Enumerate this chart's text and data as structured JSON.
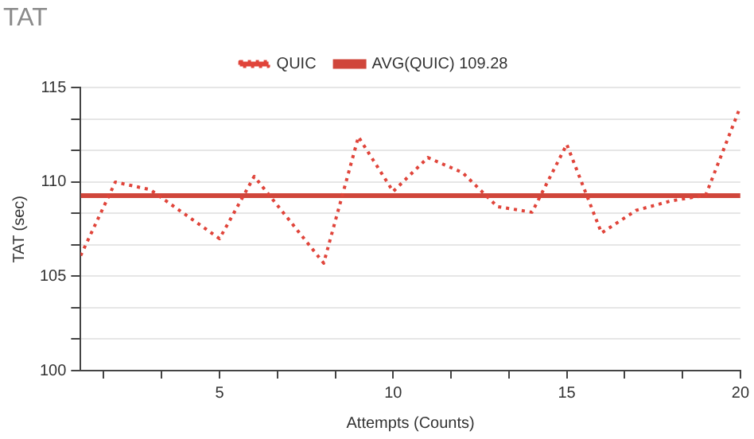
{
  "chart_data": {
    "type": "line",
    "title": "TAT",
    "xlabel": "Attempts (Counts)",
    "ylabel": "TAT (sec)",
    "x": [
      1,
      2,
      3,
      4,
      5,
      6,
      7,
      8,
      9,
      10,
      11,
      12,
      13,
      14,
      15,
      16,
      17,
      18,
      19,
      20
    ],
    "series": [
      {
        "name": "QUIC",
        "color": "#e0443a",
        "line_style": "dotted",
        "values": [
          106.1,
          110.0,
          109.6,
          108.3,
          107.0,
          110.3,
          108.0,
          105.7,
          112.4,
          109.5,
          111.3,
          110.5,
          108.7,
          108.4,
          112.0,
          107.3,
          108.5,
          109.0,
          109.3,
          114.0
        ]
      }
    ],
    "ref_lines": [
      {
        "axis": "y",
        "value": 109.28,
        "label": "AVG(QUIC) 109.28",
        "color": "#d0463b",
        "line_style": "solid"
      }
    ],
    "xlim": [
      1,
      20
    ],
    "xticks": [
      {
        "value": 1.667,
        "label": null
      },
      {
        "value": 3.333,
        "label": null
      },
      5,
      {
        "value": 6.667,
        "label": null
      },
      {
        "value": 8.333,
        "label": null
      },
      10,
      {
        "value": 11.667,
        "label": null
      },
      {
        "value": 13.333,
        "label": null
      },
      15,
      {
        "value": 16.667,
        "label": null
      },
      {
        "value": 18.333,
        "label": null
      },
      20
    ],
    "ylim": [
      100,
      115
    ],
    "yticks": [
      100,
      {
        "value": 101.667,
        "label": null
      },
      {
        "value": 103.333,
        "label": null
      },
      105,
      {
        "value": 106.667,
        "label": null
      },
      {
        "value": 108.333,
        "label": null
      },
      110,
      {
        "value": 111.667,
        "label": null
      },
      {
        "value": 113.333,
        "label": null
      },
      115
    ],
    "grid": "y",
    "legend": "top",
    "marker": "none"
  }
}
